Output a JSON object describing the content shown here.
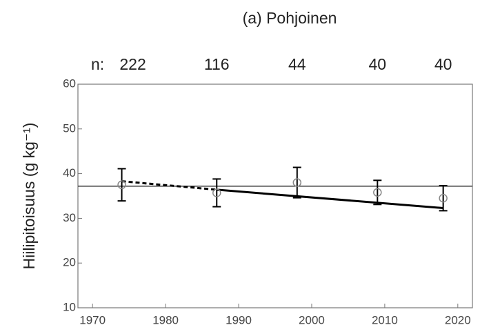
{
  "chart_data": {
    "type": "scatter",
    "title": "(a) Pohjoinen",
    "y_label": "Hiilipitoisuus (g kg⁻¹)",
    "n_label": "n:",
    "n": [
      222,
      116,
      44,
      40,
      40
    ],
    "x": [
      1974,
      1987,
      1998,
      2009,
      2018
    ],
    "series": [
      {
        "values": [
          37.5,
          35.7,
          38.0,
          35.8,
          34.5
        ],
        "errors": [
          3.6,
          3.1,
          3.4,
          2.7,
          2.8
        ],
        "color": "#888888"
      }
    ],
    "hline": 37.2,
    "trend_dashed": {
      "x": [
        1974,
        1987
      ],
      "values": [
        38.3,
        36.4
      ]
    },
    "trend_solid": {
      "x": [
        1987,
        2018
      ],
      "values": [
        36.4,
        32.3
      ]
    },
    "xlim": [
      1968,
      2022
    ],
    "ylim": [
      10,
      60
    ],
    "xticks": [
      1970,
      1980,
      1990,
      2000,
      2010,
      2020
    ],
    "yticks": [
      10,
      20,
      30,
      40,
      50,
      60
    ]
  }
}
